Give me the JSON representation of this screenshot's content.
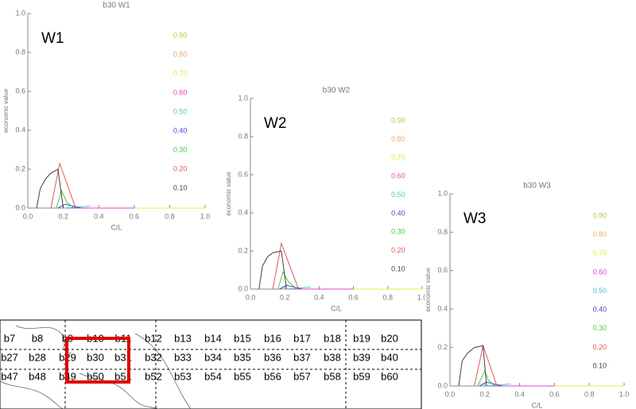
{
  "chart_data": [
    {
      "type": "line",
      "title": "b30 W1",
      "annotation": "W1",
      "xlabel": "C/L",
      "ylabel": "economic value",
      "xlim": [
        0,
        1
      ],
      "ylim": [
        0,
        1
      ],
      "xticks": [
        {
          "value": 0,
          "label": "0.0"
        },
        {
          "value": 0.2,
          "label": "0.2"
        },
        {
          "value": 0.4,
          "label": "0.4"
        },
        {
          "value": 0.6,
          "label": "0.6"
        },
        {
          "value": 0.8,
          "label": "0.8"
        },
        {
          "value": 1,
          "label": "1.0"
        }
      ],
      "yticks": [
        {
          "value": 0,
          "label": "0.0"
        },
        {
          "value": 0.2,
          "label": "0.2"
        },
        {
          "value": 0.4,
          "label": "0.4"
        },
        {
          "value": 0.6,
          "label": "0.6"
        },
        {
          "value": 0.8,
          "label": "0.8"
        },
        {
          "value": 1,
          "label": "1.0"
        }
      ],
      "series": [
        {
          "name": "0.90",
          "color": "#b8c848",
          "x": [
            0.2,
            1.0
          ],
          "values": [
            0,
            0
          ]
        },
        {
          "name": "0.80",
          "color": "#f0a868",
          "x": [
            0.2,
            1.0
          ],
          "values": [
            0,
            0
          ]
        },
        {
          "name": "0.70",
          "color": "#e8e848",
          "x": [
            0.2,
            1.0
          ],
          "values": [
            0,
            0
          ]
        },
        {
          "name": "0.60",
          "color": "#d848c8",
          "x": [
            0.2,
            0.6
          ],
          "values": [
            0,
            0
          ]
        },
        {
          "name": "0.50",
          "color": "#48c8c8",
          "x": [
            0.2,
            0.35
          ],
          "values": [
            0,
            0.01
          ]
        },
        {
          "name": "0.40",
          "color": "#4848c8",
          "x": [
            0.17,
            0.21,
            0.3
          ],
          "values": [
            0,
            0.02,
            0
          ]
        },
        {
          "name": "0.30",
          "color": "#48c848",
          "x": [
            0.16,
            0.19,
            0.22,
            0.26
          ],
          "values": [
            0,
            0.09,
            0.03,
            0
          ]
        },
        {
          "name": "0.20",
          "color": "#e05858",
          "x": [
            0.13,
            0.18,
            0.27
          ],
          "values": [
            0,
            0.23,
            0
          ]
        },
        {
          "name": "0.10",
          "color": "#404040",
          "x": [
            0.05,
            0.07,
            0.1,
            0.13,
            0.17,
            0.2
          ],
          "values": [
            0,
            0.1,
            0.15,
            0.18,
            0.2,
            0
          ]
        }
      ]
    },
    {
      "type": "line",
      "title": "b30 W2",
      "annotation": "W2",
      "xlabel": "C/L",
      "ylabel": "economic value",
      "xlim": [
        0,
        1
      ],
      "ylim": [
        0,
        1
      ],
      "xticks": [
        {
          "value": 0,
          "label": "0.0"
        },
        {
          "value": 0.2,
          "label": "0.2"
        },
        {
          "value": 0.4,
          "label": "0.4"
        },
        {
          "value": 0.6,
          "label": "0.6"
        },
        {
          "value": 0.8,
          "label": "0.8"
        },
        {
          "value": 1,
          "label": "1.0"
        }
      ],
      "yticks": [
        {
          "value": 0,
          "label": "0.0"
        },
        {
          "value": 0.2,
          "label": "0.2"
        },
        {
          "value": 0.4,
          "label": "0.4"
        },
        {
          "value": 0.6,
          "label": "0.6"
        },
        {
          "value": 0.8,
          "label": "0.8"
        },
        {
          "value": 1,
          "label": "1.0"
        }
      ],
      "series": [
        {
          "name": "0.90",
          "color": "#b8c848",
          "x": [
            0.2,
            1.0
          ],
          "values": [
            0,
            0
          ]
        },
        {
          "name": "0.80",
          "color": "#f0a868",
          "x": [
            0.2,
            1.0
          ],
          "values": [
            0,
            0
          ]
        },
        {
          "name": "0.70",
          "color": "#e8e848",
          "x": [
            0.2,
            1.0
          ],
          "values": [
            0,
            0
          ]
        },
        {
          "name": "0.60",
          "color": "#d848c8",
          "x": [
            0.2,
            0.6
          ],
          "values": [
            0,
            0
          ]
        },
        {
          "name": "0.50",
          "color": "#48c8c8",
          "x": [
            0.2,
            0.35
          ],
          "values": [
            0,
            0.01
          ]
        },
        {
          "name": "0.40",
          "color": "#4848c8",
          "x": [
            0.17,
            0.21,
            0.3
          ],
          "values": [
            0,
            0.02,
            0
          ]
        },
        {
          "name": "0.30",
          "color": "#48c848",
          "x": [
            0.16,
            0.19,
            0.22,
            0.27
          ],
          "values": [
            0,
            0.09,
            0.04,
            0
          ]
        },
        {
          "name": "0.20",
          "color": "#e05858",
          "x": [
            0.13,
            0.18,
            0.28
          ],
          "values": [
            0,
            0.24,
            0
          ]
        },
        {
          "name": "0.10",
          "color": "#404040",
          "x": [
            0.05,
            0.07,
            0.1,
            0.13,
            0.18,
            0.21
          ],
          "values": [
            0,
            0.12,
            0.17,
            0.19,
            0.2,
            0
          ]
        }
      ]
    },
    {
      "type": "line",
      "title": "b30 W3",
      "annotation": "W3",
      "xlabel": "C/L",
      "ylabel": "economic value",
      "xlim": [
        0,
        1
      ],
      "ylim": [
        0,
        1
      ],
      "xticks": [
        {
          "value": 0,
          "label": "0.0"
        },
        {
          "value": 0.2,
          "label": "0.2"
        },
        {
          "value": 0.4,
          "label": "0.4"
        },
        {
          "value": 0.6,
          "label": "0.6"
        },
        {
          "value": 0.8,
          "label": "0.8"
        },
        {
          "value": 1,
          "label": "1.0"
        }
      ],
      "yticks": [
        {
          "value": 0,
          "label": "0.0"
        },
        {
          "value": 0.2,
          "label": "0.2"
        },
        {
          "value": 0.4,
          "label": "0.4"
        },
        {
          "value": 0.6,
          "label": "0.6"
        },
        {
          "value": 0.8,
          "label": "0.8"
        },
        {
          "value": 1,
          "label": "1.0"
        }
      ],
      "series": [
        {
          "name": "0.90",
          "color": "#b8c848",
          "x": [
            0.2,
            1.0
          ],
          "values": [
            0,
            0
          ]
        },
        {
          "name": "0.80",
          "color": "#f0a868",
          "x": [
            0.2,
            1.0
          ],
          "values": [
            0,
            0
          ]
        },
        {
          "name": "0.70",
          "color": "#e8e848",
          "x": [
            0.2,
            1.0
          ],
          "values": [
            0,
            0
          ]
        },
        {
          "name": "0.60",
          "color": "#d848c8",
          "x": [
            0.2,
            0.6
          ],
          "values": [
            0,
            0
          ]
        },
        {
          "name": "0.50",
          "color": "#48c8c8",
          "x": [
            0.2,
            0.35
          ],
          "values": [
            0,
            0.01
          ]
        },
        {
          "name": "0.40",
          "color": "#4848c8",
          "x": [
            0.17,
            0.21,
            0.3
          ],
          "values": [
            0,
            0.02,
            0
          ]
        },
        {
          "name": "0.30",
          "color": "#48c848",
          "x": [
            0.16,
            0.2,
            0.22,
            0.26
          ],
          "values": [
            0,
            0.08,
            0.03,
            0
          ]
        },
        {
          "name": "0.20",
          "color": "#e05858",
          "x": [
            0.14,
            0.19,
            0.27
          ],
          "values": [
            0,
            0.21,
            0
          ]
        },
        {
          "name": "0.10",
          "color": "#404040",
          "x": [
            0.05,
            0.07,
            0.1,
            0.14,
            0.19,
            0.21
          ],
          "values": [
            0,
            0.13,
            0.17,
            0.2,
            0.21,
            0
          ]
        }
      ]
    }
  ],
  "map": {
    "rows": [
      [
        "b7",
        "b8",
        "b9",
        "b10",
        "b11",
        "b12",
        "b13",
        "b14",
        "b15",
        "b16",
        "b17",
        "b18",
        "b19",
        "b20"
      ],
      [
        "b27",
        "b28",
        "b29",
        "b30",
        "b31",
        "b32",
        "b33",
        "b34",
        "b35",
        "b36",
        "b37",
        "b38",
        "b39",
        "b40"
      ],
      [
        "b47",
        "b48",
        "b49",
        "b50",
        "b51",
        "b52",
        "b53",
        "b54",
        "b55",
        "b56",
        "b57",
        "b58",
        "b59",
        "b60"
      ]
    ]
  }
}
